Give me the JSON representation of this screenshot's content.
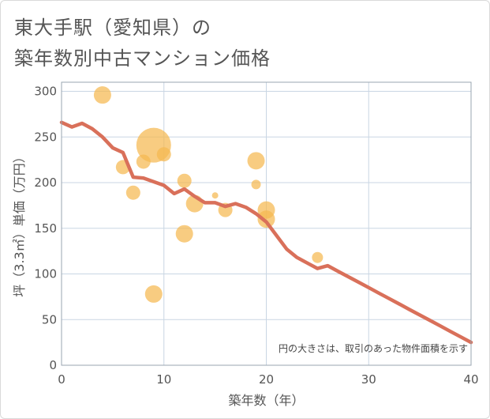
{
  "header": {
    "title_line1": "東大手駅（愛知県）の",
    "title_line2": "築年数別中古マンション価格"
  },
  "chart_data": {
    "type": "scatter",
    "title": "東大手駅（愛知県）の築年数別中古マンション価格",
    "xlabel": "築年数（年）",
    "ylabel": "坪（3.3㎡）単価（万円）",
    "xlim": [
      0,
      40
    ],
    "ylim": [
      0,
      310
    ],
    "x_ticks": [
      0,
      10,
      20,
      30,
      40
    ],
    "y_ticks": [
      0,
      50,
      100,
      150,
      200,
      250,
      300
    ],
    "grid": true,
    "note": "円の大きさは、取引のあった物件面積を示す",
    "colors": {
      "bubble": "#f5b950",
      "trend_line": "#d9705a",
      "grid": "#c9d6e3",
      "axis": "#9aa5b0",
      "text": "#555555"
    },
    "bubbles": [
      {
        "x": 4,
        "y": 296,
        "size": 11
      },
      {
        "x": 6,
        "y": 217,
        "size": 9
      },
      {
        "x": 7,
        "y": 189,
        "size": 9
      },
      {
        "x": 8,
        "y": 223,
        "size": 9
      },
      {
        "x": 9,
        "y": 241,
        "size": 22
      },
      {
        "x": 9,
        "y": 78,
        "size": 11
      },
      {
        "x": 10,
        "y": 231,
        "size": 9
      },
      {
        "x": 12,
        "y": 202,
        "size": 9
      },
      {
        "x": 12,
        "y": 144,
        "size": 11
      },
      {
        "x": 13,
        "y": 177,
        "size": 11
      },
      {
        "x": 15,
        "y": 186,
        "size": 4
      },
      {
        "x": 16,
        "y": 170,
        "size": 9
      },
      {
        "x": 19,
        "y": 224,
        "size": 11
      },
      {
        "x": 19,
        "y": 198,
        "size": 6
      },
      {
        "x": 20,
        "y": 170,
        "size": 11
      },
      {
        "x": 20,
        "y": 160,
        "size": 11
      },
      {
        "x": 25,
        "y": 118,
        "size": 7
      }
    ],
    "trend_line": {
      "x": [
        0,
        1,
        2,
        3,
        4,
        5,
        6,
        7,
        8,
        9,
        10,
        11,
        12,
        13,
        14,
        15,
        16,
        17,
        18,
        19,
        20,
        21,
        22,
        23,
        24,
        25,
        26,
        27,
        28,
        29,
        30,
        31,
        32,
        33,
        34,
        35,
        36,
        37,
        38,
        39,
        40
      ],
      "y": [
        266,
        261,
        265,
        259,
        250,
        238,
        233,
        206,
        205,
        201,
        197,
        188,
        193,
        185,
        178,
        178,
        174,
        177,
        173,
        166,
        157,
        142,
        127,
        118,
        112,
        106,
        109,
        103,
        97,
        91,
        85,
        79,
        73,
        67,
        61,
        55,
        49,
        43,
        37,
        31,
        25
      ]
    }
  }
}
